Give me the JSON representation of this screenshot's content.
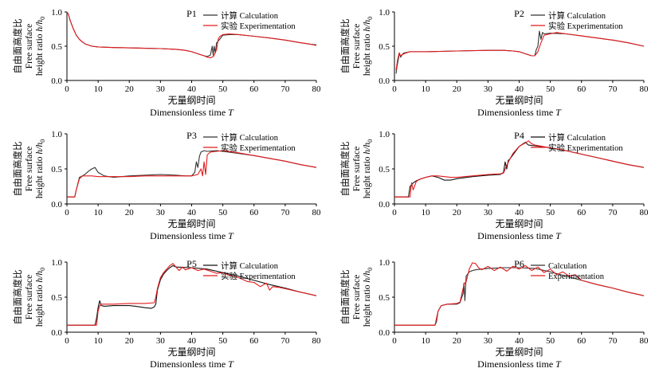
{
  "chart_data": [
    {
      "type": "line",
      "title": "P1",
      "xlabel_cn": "无量纲时间",
      "xlabel_en": "Dimensionless time",
      "xlabel_symbol": "T",
      "ylabel_cn": "自由面高度比",
      "ylabel_en1": "Free surface",
      "ylabel_en2": "height ratio",
      "ylabel_symbol": "h/h",
      "ylabel_sub": "0",
      "xlim": [
        0,
        80
      ],
      "ylim": [
        0,
        1.0
      ],
      "xticks": [
        0,
        10,
        20,
        30,
        40,
        50,
        60,
        70,
        80
      ],
      "yticks": [
        "0.0",
        "0.5",
        "1.0"
      ],
      "legend_position": "top-right",
      "series": [
        {
          "name": "计算 Calculation",
          "color": "#333333",
          "x": [
            0,
            0.5,
            1,
            2,
            3,
            4,
            5,
            6,
            8,
            10,
            15,
            20,
            25,
            30,
            35,
            38,
            40,
            42,
            44,
            45,
            46,
            46.6,
            46.9,
            47.2,
            47.6,
            48,
            49,
            50,
            52,
            55,
            60,
            65,
            70,
            75,
            78,
            80
          ],
          "y": [
            1.0,
            0.96,
            0.88,
            0.76,
            0.66,
            0.6,
            0.56,
            0.53,
            0.5,
            0.49,
            0.48,
            0.475,
            0.47,
            0.465,
            0.455,
            0.44,
            0.42,
            0.39,
            0.36,
            0.35,
            0.37,
            0.5,
            0.37,
            0.5,
            0.4,
            0.55,
            0.6,
            0.66,
            0.67,
            0.67,
            0.645,
            0.62,
            0.59,
            0.55,
            0.53,
            0.52
          ]
        },
        {
          "name": "实验 Experimentation",
          "color": "#e41a1c",
          "x": [
            0,
            0.5,
            1,
            2,
            3,
            4,
            5,
            6,
            8,
            10,
            15,
            20,
            25,
            30,
            35,
            38,
            40,
            42,
            44,
            45,
            46,
            47,
            48,
            48.5,
            49,
            50,
            52,
            55,
            60,
            65,
            70,
            75,
            78,
            80
          ],
          "y": [
            1.0,
            0.96,
            0.88,
            0.76,
            0.66,
            0.6,
            0.56,
            0.53,
            0.5,
            0.49,
            0.48,
            0.475,
            0.47,
            0.465,
            0.455,
            0.44,
            0.42,
            0.39,
            0.36,
            0.34,
            0.33,
            0.35,
            0.45,
            0.6,
            0.64,
            0.67,
            0.68,
            0.67,
            0.645,
            0.62,
            0.59,
            0.55,
            0.53,
            0.51
          ]
        }
      ]
    },
    {
      "type": "line",
      "title": "P2",
      "xlabel_cn": "无量纲时间",
      "xlabel_en": "Dimensionless time",
      "xlabel_symbol": "T",
      "ylabel_cn": "自由面高度比",
      "ylabel_en1": "Free surface",
      "ylabel_en2": "height ratio",
      "ylabel_symbol": "h/h",
      "ylabel_sub": "0",
      "xlim": [
        0,
        80
      ],
      "ylim": [
        0,
        1.0
      ],
      "xticks": [
        0,
        10,
        20,
        30,
        40,
        50,
        60,
        70,
        80
      ],
      "yticks": [
        "0.0",
        "0.5",
        "1.0"
      ],
      "legend_position": "top-right",
      "series": [
        {
          "name": "计算 Calculation",
          "color": "#333333",
          "x": [
            0.5,
            0.8,
            1.2,
            1.6,
            2,
            2.5,
            3,
            5,
            10,
            20,
            30,
            35,
            38,
            40,
            42,
            44,
            45,
            45.5,
            46,
            46.5,
            47,
            47.5,
            48,
            50,
            55,
            60,
            65,
            70,
            75,
            80
          ],
          "y": [
            0.1,
            0.2,
            0.3,
            0.4,
            0.34,
            0.38,
            0.4,
            0.42,
            0.42,
            0.43,
            0.44,
            0.44,
            0.43,
            0.42,
            0.39,
            0.36,
            0.36,
            0.45,
            0.5,
            0.72,
            0.6,
            0.7,
            0.68,
            0.69,
            0.68,
            0.65,
            0.62,
            0.59,
            0.55,
            0.5
          ]
        },
        {
          "name": "实验 Experimentation",
          "color": "#e41a1c",
          "x": [
            0.5,
            1,
            1.5,
            2,
            3,
            5,
            10,
            20,
            30,
            35,
            38,
            40,
            42,
            44,
            45,
            46,
            47,
            48,
            50,
            52,
            55,
            60,
            65,
            70,
            75,
            80
          ],
          "y": [
            0.15,
            0.3,
            0.4,
            0.36,
            0.39,
            0.42,
            0.42,
            0.43,
            0.44,
            0.44,
            0.43,
            0.42,
            0.39,
            0.36,
            0.36,
            0.42,
            0.55,
            0.66,
            0.68,
            0.7,
            0.68,
            0.65,
            0.62,
            0.59,
            0.55,
            0.5
          ]
        }
      ]
    },
    {
      "type": "line",
      "title": "P3",
      "xlabel_cn": "无量纲时间",
      "xlabel_en": "Dimensionless time",
      "xlabel_symbol": "T",
      "ylabel_cn": "自由面高度比",
      "ylabel_en1": "Free surface",
      "ylabel_en2": "height ratio",
      "ylabel_symbol": "h/h",
      "ylabel_sub": "0",
      "xlim": [
        0,
        80
      ],
      "ylim": [
        0,
        1.0
      ],
      "xticks": [
        0,
        10,
        20,
        30,
        40,
        50,
        60,
        70,
        80
      ],
      "yticks": [
        "0.0",
        "0.5",
        "1.0"
      ],
      "legend_position": "top-right",
      "series": [
        {
          "name": "计算 Calculation",
          "color": "#333333",
          "x": [
            0,
            2.5,
            3,
            4,
            5,
            6,
            7,
            8,
            9,
            10,
            12,
            15,
            20,
            25,
            30,
            35,
            38,
            40,
            41,
            41.5,
            42,
            42.5,
            43,
            44,
            45,
            48,
            50,
            55,
            60,
            65,
            70,
            75,
            80
          ],
          "y": [
            0.1,
            0.1,
            0.2,
            0.38,
            0.4,
            0.43,
            0.47,
            0.5,
            0.52,
            0.45,
            0.4,
            0.38,
            0.4,
            0.41,
            0.42,
            0.41,
            0.4,
            0.4,
            0.45,
            0.6,
            0.52,
            0.68,
            0.74,
            0.76,
            0.75,
            0.76,
            0.75,
            0.72,
            0.69,
            0.65,
            0.61,
            0.56,
            0.52
          ]
        },
        {
          "name": "实验 Experimentation",
          "color": "#e41a1c",
          "x": [
            0,
            2.5,
            3,
            4,
            5,
            6,
            8,
            10,
            15,
            20,
            25,
            30,
            35,
            40,
            42,
            43,
            43.5,
            44,
            44.5,
            45,
            46,
            48,
            50,
            55,
            60,
            65,
            70,
            75,
            80
          ],
          "y": [
            0.1,
            0.1,
            0.2,
            0.36,
            0.4,
            0.4,
            0.4,
            0.39,
            0.39,
            0.39,
            0.4,
            0.4,
            0.4,
            0.4,
            0.42,
            0.5,
            0.4,
            0.6,
            0.42,
            0.7,
            0.74,
            0.75,
            0.76,
            0.73,
            0.69,
            0.65,
            0.61,
            0.56,
            0.52
          ]
        }
      ]
    },
    {
      "type": "line",
      "title": "P4",
      "xlabel_cn": "无量纲时间",
      "xlabel_en": "Dimensionless time",
      "xlabel_symbol": "T",
      "ylabel_cn": "自由面高度比",
      "ylabel_en1": "Free surface",
      "ylabel_en2": "height ratio",
      "ylabel_symbol": "h/h",
      "ylabel_sub": "0",
      "xlim": [
        0,
        80
      ],
      "ylim": [
        0,
        1.0
      ],
      "xticks": [
        0,
        10,
        20,
        30,
        40,
        50,
        60,
        70,
        80
      ],
      "yticks": [
        "0.0",
        "0.5",
        "1.0"
      ],
      "legend_position": "top-right",
      "series": [
        {
          "name": "计算 Calculation",
          "color": "#111111",
          "x": [
            0,
            4.5,
            5,
            6,
            7,
            8,
            10,
            12,
            14,
            16,
            18,
            20,
            25,
            30,
            34,
            35,
            35.5,
            36,
            36.5,
            37,
            38,
            40,
            41,
            42,
            43,
            45,
            50,
            55,
            60,
            65,
            70,
            75,
            80
          ],
          "y": [
            0.1,
            0.1,
            0.25,
            0.3,
            0.33,
            0.35,
            0.38,
            0.4,
            0.38,
            0.34,
            0.34,
            0.36,
            0.39,
            0.41,
            0.42,
            0.45,
            0.6,
            0.5,
            0.62,
            0.64,
            0.7,
            0.82,
            0.85,
            0.88,
            0.84,
            0.83,
            0.8,
            0.76,
            0.71,
            0.66,
            0.61,
            0.56,
            0.52
          ]
        },
        {
          "name": "实验 Experimentation",
          "color": "#e41a1c",
          "x": [
            0,
            5,
            5.5,
            6,
            7,
            8,
            10,
            12,
            14,
            16,
            18,
            20,
            25,
            30,
            34,
            35,
            36,
            37,
            38,
            40,
            42,
            43,
            44,
            45,
            50,
            55,
            60,
            65,
            70,
            75,
            80
          ],
          "y": [
            0.1,
            0.1,
            0.3,
            0.2,
            0.32,
            0.35,
            0.38,
            0.4,
            0.4,
            0.39,
            0.38,
            0.38,
            0.4,
            0.42,
            0.43,
            0.44,
            0.55,
            0.64,
            0.72,
            0.82,
            0.87,
            0.9,
            0.86,
            0.84,
            0.8,
            0.76,
            0.71,
            0.66,
            0.61,
            0.56,
            0.52
          ]
        }
      ]
    },
    {
      "type": "line",
      "title": "P5",
      "xlabel_cn": "无量纲时间",
      "xlabel_en": "Dimensionless time",
      "xlabel_symbol": "T",
      "ylabel_cn": "自由面高度比",
      "ylabel_en1": "Free surface",
      "ylabel_en2": "height ratio",
      "ylabel_symbol": "h/h",
      "ylabel_sub": "0",
      "xlim": [
        0,
        80
      ],
      "ylim": [
        0,
        1.0
      ],
      "xticks": [
        0,
        10,
        20,
        30,
        40,
        50,
        60,
        70,
        80
      ],
      "yticks": [
        "0.0",
        "0.5",
        "1.0"
      ],
      "legend_position": "top-right",
      "series": [
        {
          "name": "计算 Calculation",
          "color": "#111111",
          "x": [
            0,
            9,
            9.5,
            10,
            10.5,
            11,
            12,
            15,
            20,
            22,
            25,
            27,
            28,
            28.5,
            29,
            30,
            31,
            32,
            33,
            34,
            35,
            40,
            45,
            50,
            55,
            60,
            65,
            70,
            75,
            80
          ],
          "y": [
            0.1,
            0.1,
            0.2,
            0.35,
            0.45,
            0.38,
            0.37,
            0.38,
            0.38,
            0.37,
            0.35,
            0.34,
            0.36,
            0.4,
            0.6,
            0.75,
            0.83,
            0.88,
            0.92,
            0.95,
            0.93,
            0.92,
            0.9,
            0.85,
            0.8,
            0.74,
            0.68,
            0.63,
            0.57,
            0.52
          ]
        },
        {
          "name": "实验 Experimentation",
          "color": "#e41a1c",
          "x": [
            0,
            9.5,
            10,
            10.5,
            11,
            12,
            15,
            20,
            25,
            28,
            28.5,
            29,
            30,
            31,
            32,
            33,
            34,
            35,
            36,
            37,
            38,
            40,
            42,
            44,
            46,
            48,
            50,
            52,
            55,
            58,
            60,
            62,
            64,
            65,
            66,
            68,
            70,
            75,
            80
          ],
          "y": [
            0.1,
            0.1,
            0.3,
            0.38,
            0.4,
            0.4,
            0.4,
            0.41,
            0.41,
            0.42,
            0.5,
            0.62,
            0.78,
            0.85,
            0.9,
            0.95,
            0.98,
            0.93,
            0.88,
            0.93,
            0.89,
            0.92,
            0.88,
            0.9,
            0.87,
            0.84,
            0.85,
            0.81,
            0.78,
            0.72,
            0.71,
            0.65,
            0.7,
            0.6,
            0.65,
            0.64,
            0.62,
            0.57,
            0.52
          ]
        }
      ]
    },
    {
      "type": "line",
      "title": "P6",
      "xlabel_cn": "无量纲时间",
      "xlabel_en": "Dimensionless time",
      "xlabel_symbol": "T",
      "ylabel_cn": "自由面高度比",
      "ylabel_en1": "Free surface",
      "ylabel_en2": "height ratio",
      "ylabel_symbol": "h/h",
      "ylabel_sub": "0",
      "xlim": [
        0,
        80
      ],
      "ylim": [
        0,
        1.0
      ],
      "xticks": [
        0,
        10,
        20,
        30,
        40,
        50,
        60,
        70,
        80
      ],
      "yticks": [
        "0.0",
        "0.5",
        "1.0"
      ],
      "legend_position": "top-right",
      "series": [
        {
          "name": "Calculation",
          "color": "#333333",
          "x": [
            0,
            13,
            13.5,
            14,
            15,
            17,
            20,
            21,
            22,
            22.3,
            22.6,
            23,
            24,
            25,
            26,
            28,
            30,
            35,
            40,
            45,
            50,
            55,
            60,
            65,
            70,
            75,
            80
          ],
          "y": [
            0.1,
            0.1,
            0.15,
            0.3,
            0.38,
            0.4,
            0.4,
            0.42,
            0.55,
            0.7,
            0.45,
            0.8,
            0.86,
            0.88,
            0.89,
            0.9,
            0.91,
            0.92,
            0.92,
            0.91,
            0.86,
            0.8,
            0.74,
            0.68,
            0.63,
            0.57,
            0.52
          ]
        },
        {
          "name": "Experimentation",
          "color": "#e41a1c",
          "x": [
            0,
            13,
            13.5,
            14,
            15,
            17,
            20,
            21,
            22,
            22.5,
            23,
            24,
            25,
            26,
            27,
            28,
            30,
            32,
            34,
            36,
            38,
            40,
            42,
            44,
            46,
            48,
            50,
            52,
            54,
            56,
            58,
            60,
            65,
            70,
            75,
            80
          ],
          "y": [
            0.1,
            0.1,
            0.2,
            0.3,
            0.38,
            0.4,
            0.41,
            0.43,
            0.62,
            0.7,
            0.72,
            0.9,
            0.99,
            0.98,
            0.92,
            0.89,
            0.94,
            0.88,
            0.93,
            0.87,
            0.94,
            0.9,
            0.95,
            0.88,
            0.93,
            0.85,
            0.9,
            0.82,
            0.86,
            0.8,
            0.82,
            0.74,
            0.68,
            0.63,
            0.57,
            0.52
          ]
        }
      ]
    }
  ]
}
